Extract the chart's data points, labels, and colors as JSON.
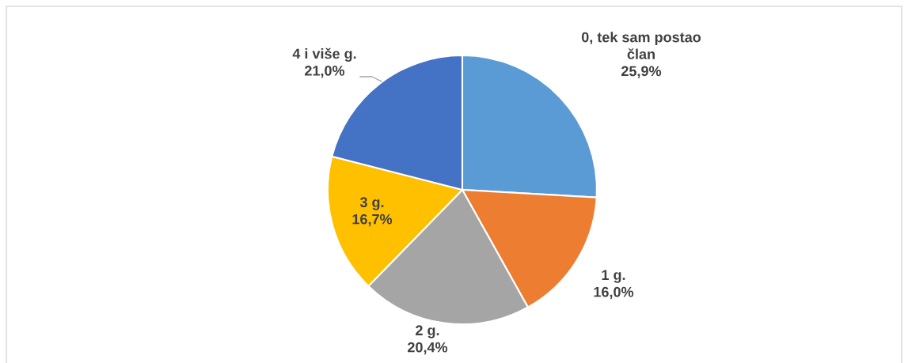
{
  "chart_data": {
    "type": "pie",
    "categories": [
      "0, tek sam postao\nčlan",
      "1 g.",
      "2 g.",
      "3 g.",
      "4 i više g."
    ],
    "values": [
      25.9,
      16.0,
      20.4,
      16.7,
      21.0
    ],
    "colors": [
      "#5b9bd5",
      "#ed7d31",
      "#a5a5a5",
      "#ffc000",
      "#4472c4"
    ],
    "value_labels": [
      "25,9%",
      "16,0%",
      "20,4%",
      "16,7%",
      "21,0%"
    ],
    "legend": false
  }
}
